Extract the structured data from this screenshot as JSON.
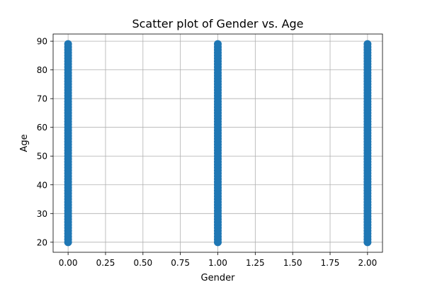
{
  "chart_data": {
    "type": "scatter",
    "title": "Scatter plot of Gender vs. Age",
    "xlabel": "Gender",
    "ylabel": "Age",
    "xlim": [
      -0.1,
      2.1
    ],
    "ylim": [
      16.5,
      92.5
    ],
    "xticks": [
      0,
      0.25,
      0.5,
      0.75,
      1,
      1.25,
      1.5,
      1.75,
      2
    ],
    "xtick_labels": [
      "0.00",
      "0.25",
      "0.50",
      "0.75",
      "1.00",
      "1.25",
      "1.50",
      "1.75",
      "2.00"
    ],
    "yticks": [
      20,
      30,
      40,
      50,
      60,
      70,
      80,
      90
    ],
    "ytick_labels": [
      "20",
      "30",
      "40",
      "50",
      "60",
      "70",
      "80",
      "90"
    ],
    "grid": true,
    "legend": "none",
    "marker_color": "#1f77b4",
    "series": [
      {
        "x_values": [
          0,
          1,
          2
        ],
        "y_min": 20,
        "y_max": 89,
        "y_step": 1
      }
    ]
  }
}
